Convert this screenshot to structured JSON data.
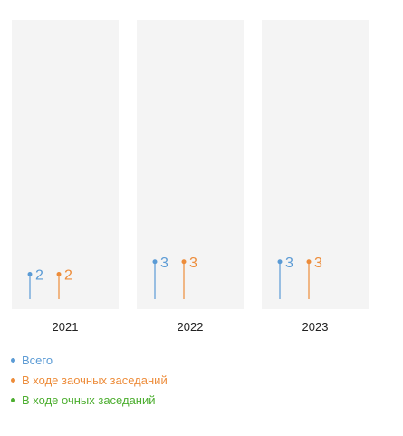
{
  "chart_data": {
    "type": "lollipop",
    "categories": [
      "2021",
      "2022",
      "2023"
    ],
    "series": [
      {
        "name": "Всего",
        "color": "#5b9bd5",
        "values": [
          2,
          3,
          3
        ]
      },
      {
        "name": "В ходе заочных заседаний",
        "color": "#ed8c3a",
        "values": [
          2,
          3,
          3
        ]
      },
      {
        "name": "В ходе очных заседаний",
        "color": "#4cae2f",
        "values": [
          null,
          null,
          null
        ]
      }
    ],
    "ylim": [
      0,
      16
    ],
    "legend_position": "bottom-left",
    "grid": false
  }
}
